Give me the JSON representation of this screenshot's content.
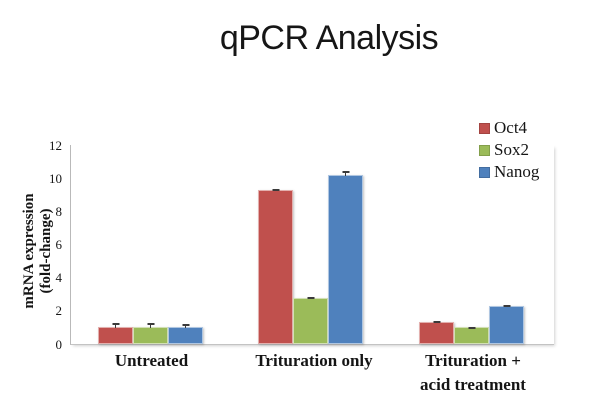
{
  "title": "qPCR Analysis",
  "chart_data": {
    "type": "bar",
    "title": "qPCR Analysis",
    "categories": [
      "Untreated",
      "Trituration only",
      "Trituration + acid treatment"
    ],
    "category_label_lines": [
      [
        "Untreated"
      ],
      [
        "Trituration only"
      ],
      [
        "Trituration +",
        "acid treatment"
      ]
    ],
    "series": [
      {
        "name": "Oct4",
        "color": "#C0504D",
        "values": [
          1.0,
          9.3,
          1.3
        ],
        "errors": [
          0.3,
          0.1,
          0.15
        ]
      },
      {
        "name": "Sox2",
        "color": "#9BBB59",
        "values": [
          1.0,
          2.75,
          1.0
        ],
        "errors": [
          0.3,
          0.15,
          0.1
        ]
      },
      {
        "name": "Nanog",
        "color": "#4F81BD",
        "values": [
          1.0,
          10.2,
          2.3
        ],
        "errors": [
          0.25,
          0.3,
          0.1
        ]
      }
    ],
    "xlabel": "",
    "ylabel": "mRNA expression (fold-change)",
    "ylabel_lines": [
      "mRNA expression",
      "(fold-change)"
    ],
    "yticks": [
      0,
      2,
      4,
      6,
      8,
      10,
      12
    ],
    "ylim": [
      0,
      12
    ],
    "grid": false,
    "legend_position": "top-right",
    "legend_entries": [
      "Oct4",
      "Sox2",
      "Nanog"
    ],
    "colors": {
      "background": "#FFFFFF",
      "axis": "#BFBFBF",
      "text": "#161616",
      "error_bar": "#3A3A3A"
    }
  }
}
